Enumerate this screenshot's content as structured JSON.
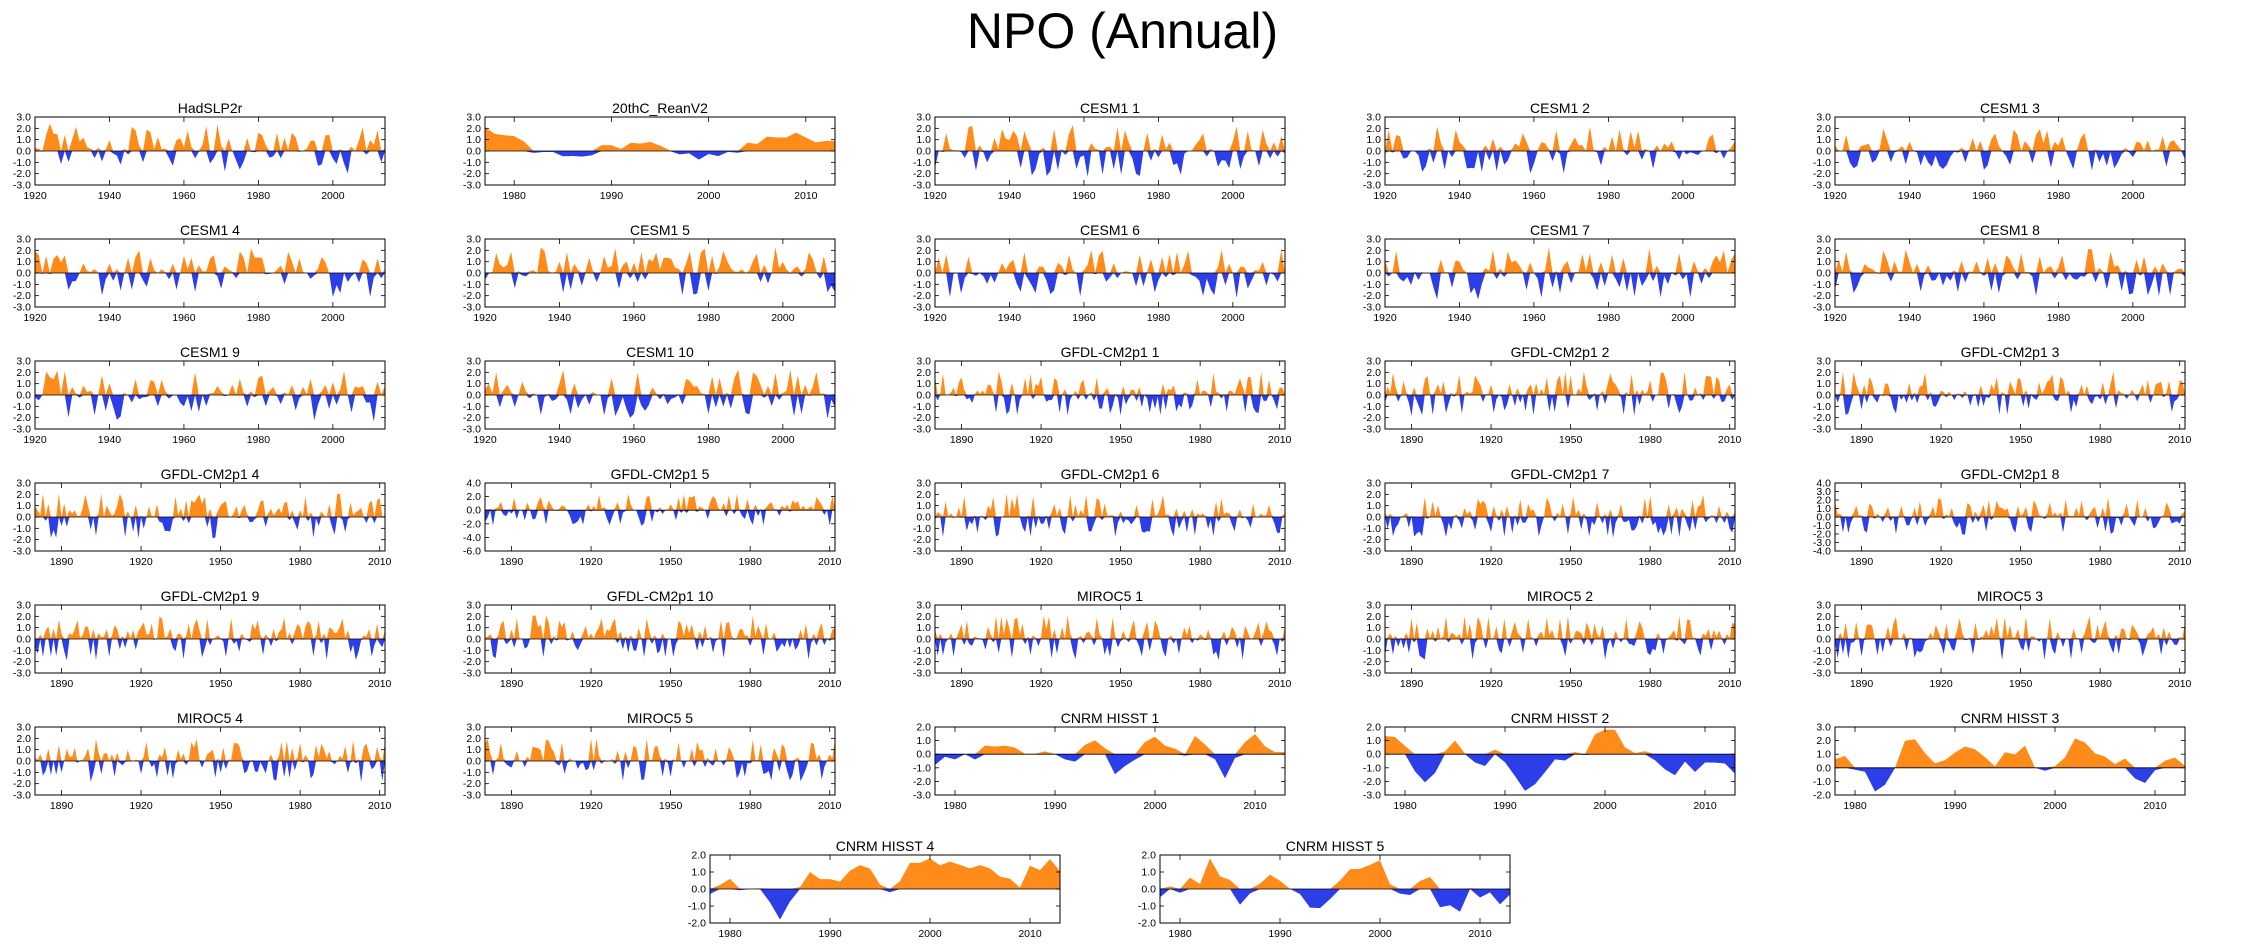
{
  "title": "NPO (Annual)",
  "colors": {
    "positive": "#ff8c1a",
    "negative": "#2b3ee8",
    "frame": "#000000",
    "zero_line": "#000000"
  },
  "chart_data": [
    {
      "type": "area",
      "title": "HadSLP2r",
      "x_ticks": [
        1920,
        1940,
        1960,
        1980,
        2000
      ],
      "xlim": [
        1920,
        2014
      ],
      "y_ticks": [
        3.0,
        2.0,
        1.0,
        0.0,
        -1.0,
        -2.0,
        -3.0
      ],
      "ylim": [
        -3,
        3
      ],
      "seed": 11,
      "smooth": 1,
      "pos_bias": 0.2,
      "amplitude": 1.0
    },
    {
      "type": "area",
      "title": "20thC_ReanV2",
      "x_ticks": [
        1980,
        1990,
        2000,
        2010
      ],
      "xlim": [
        1977,
        2013
      ],
      "y_ticks": [
        3.0,
        2.0,
        1.0,
        0.0,
        -1.0,
        -2.0,
        -3.0
      ],
      "ylim": [
        -3,
        3
      ],
      "seed": 12,
      "smooth": 4,
      "pos_bias": 0.1,
      "amplitude": 1.2
    },
    {
      "type": "area",
      "title": "CESM1 1",
      "x_ticks": [
        1920,
        1940,
        1960,
        1980,
        2000
      ],
      "xlim": [
        1920,
        2014
      ],
      "y_ticks": [
        3.0,
        2.0,
        1.0,
        0.0,
        -1.0,
        -2.0,
        -3.0
      ],
      "ylim": [
        -3,
        3
      ],
      "seed": 13,
      "smooth": 1,
      "pos_bias": 0.1,
      "amplitude": 1.1
    },
    {
      "type": "area",
      "title": "CESM1 2",
      "x_ticks": [
        1920,
        1940,
        1960,
        1980,
        2000
      ],
      "xlim": [
        1920,
        2014
      ],
      "y_ticks": [
        3.0,
        2.0,
        1.0,
        0.0,
        -1.0,
        -2.0,
        -3.0
      ],
      "ylim": [
        -3,
        3
      ],
      "seed": 14,
      "smooth": 1,
      "pos_bias": 0.0,
      "amplitude": 1.0
    },
    {
      "type": "area",
      "title": "CESM1 3",
      "x_ticks": [
        1920,
        1940,
        1960,
        1980,
        2000
      ],
      "xlim": [
        1920,
        2014
      ],
      "y_ticks": [
        3.0,
        2.0,
        1.0,
        0.0,
        -1.0,
        -2.0,
        -3.0
      ],
      "ylim": [
        -3,
        3
      ],
      "seed": 15,
      "smooth": 1,
      "pos_bias": 0.1,
      "amplitude": 0.9
    },
    {
      "type": "area",
      "title": "CESM1 4",
      "x_ticks": [
        1920,
        1940,
        1960,
        1980,
        2000
      ],
      "xlim": [
        1920,
        2014
      ],
      "y_ticks": [
        3.0,
        2.0,
        1.0,
        0.0,
        -1.0,
        -2.0,
        -3.0
      ],
      "ylim": [
        -3,
        3
      ],
      "seed": 16,
      "smooth": 1,
      "pos_bias": 0.0,
      "amplitude": 1.0
    },
    {
      "type": "area",
      "title": "CESM1 5",
      "x_ticks": [
        1920,
        1940,
        1960,
        1980,
        2000
      ],
      "xlim": [
        1920,
        2014
      ],
      "y_ticks": [
        3.0,
        2.0,
        1.0,
        0.0,
        -1.0,
        -2.0,
        -3.0
      ],
      "ylim": [
        -3,
        3
      ],
      "seed": 17,
      "smooth": 1,
      "pos_bias": 0.15,
      "amplitude": 1.0
    },
    {
      "type": "area",
      "title": "CESM1 6",
      "x_ticks": [
        1920,
        1940,
        1960,
        1980,
        2000
      ],
      "xlim": [
        1920,
        2014
      ],
      "y_ticks": [
        3.0,
        2.0,
        1.0,
        0.0,
        -1.0,
        -2.0,
        -3.0
      ],
      "ylim": [
        -3,
        3
      ],
      "seed": 18,
      "smooth": 1,
      "pos_bias": 0.0,
      "amplitude": 1.0
    },
    {
      "type": "area",
      "title": "CESM1 7",
      "x_ticks": [
        1920,
        1940,
        1960,
        1980,
        2000
      ],
      "xlim": [
        1920,
        2014
      ],
      "y_ticks": [
        3.0,
        2.0,
        1.0,
        0.0,
        -1.0,
        -2.0,
        -3.0
      ],
      "ylim": [
        -3,
        3
      ],
      "seed": 19,
      "smooth": 1,
      "pos_bias": 0.05,
      "amplitude": 1.1
    },
    {
      "type": "area",
      "title": "CESM1 8",
      "x_ticks": [
        1920,
        1940,
        1960,
        1980,
        2000
      ],
      "xlim": [
        1920,
        2014
      ],
      "y_ticks": [
        3.0,
        2.0,
        1.0,
        0.0,
        -1.0,
        -2.0,
        -3.0
      ],
      "ylim": [
        -3,
        3
      ],
      "seed": 20,
      "smooth": 1,
      "pos_bias": 0.1,
      "amplitude": 1.0
    },
    {
      "type": "area",
      "title": "CESM1 9",
      "x_ticks": [
        1920,
        1940,
        1960,
        1980,
        2000
      ],
      "xlim": [
        1920,
        2014
      ],
      "y_ticks": [
        3.0,
        2.0,
        1.0,
        0.0,
        -1.0,
        -2.0,
        -3.0
      ],
      "ylim": [
        -3,
        3
      ],
      "seed": 21,
      "smooth": 1,
      "pos_bias": 0.05,
      "amplitude": 1.1
    },
    {
      "type": "area",
      "title": "CESM1 10",
      "x_ticks": [
        1920,
        1940,
        1960,
        1980,
        2000
      ],
      "xlim": [
        1920,
        2014
      ],
      "y_ticks": [
        3.0,
        2.0,
        1.0,
        0.0,
        -1.0,
        -2.0,
        -3.0
      ],
      "ylim": [
        -3,
        3
      ],
      "seed": 22,
      "smooth": 1,
      "pos_bias": 0.1,
      "amplitude": 1.0
    },
    {
      "type": "area",
      "title": "GFDL-CM2p1 1",
      "x_ticks": [
        1890,
        1920,
        1950,
        1980,
        2010
      ],
      "xlim": [
        1880,
        2012
      ],
      "y_ticks": [
        3.0,
        2.0,
        1.0,
        0.0,
        -1.0,
        -2.0,
        -3.0
      ],
      "ylim": [
        -3,
        3
      ],
      "seed": 23,
      "smooth": 1,
      "pos_bias": 0.1,
      "amplitude": 0.9
    },
    {
      "type": "area",
      "title": "GFDL-CM2p1 2",
      "x_ticks": [
        1890,
        1920,
        1950,
        1980,
        2010
      ],
      "xlim": [
        1880,
        2012
      ],
      "y_ticks": [
        3.0,
        2.0,
        1.0,
        0.0,
        -1.0,
        -2.0,
        -3.0
      ],
      "ylim": [
        -3,
        3
      ],
      "seed": 24,
      "smooth": 1,
      "pos_bias": 0.1,
      "amplitude": 0.9
    },
    {
      "type": "area",
      "title": "GFDL-CM2p1 3",
      "x_ticks": [
        1890,
        1920,
        1950,
        1980,
        2010
      ],
      "xlim": [
        1880,
        2012
      ],
      "y_ticks": [
        3.0,
        2.0,
        1.0,
        0.0,
        -1.0,
        -2.0,
        -3.0
      ],
      "ylim": [
        -3,
        3
      ],
      "seed": 25,
      "smooth": 1,
      "pos_bias": 0.1,
      "amplitude": 0.9
    },
    {
      "type": "area",
      "title": "GFDL-CM2p1 4",
      "x_ticks": [
        1890,
        1920,
        1950,
        1980,
        2010
      ],
      "xlim": [
        1880,
        2012
      ],
      "y_ticks": [
        3.0,
        2.0,
        1.0,
        0.0,
        -1.0,
        -2.0,
        -3.0
      ],
      "ylim": [
        -3,
        3
      ],
      "seed": 26,
      "smooth": 1,
      "pos_bias": 0.1,
      "amplitude": 0.9
    },
    {
      "type": "area",
      "title": "GFDL-CM2p1 5",
      "x_ticks": [
        1890,
        1920,
        1950,
        1980,
        2010
      ],
      "xlim": [
        1880,
        2012
      ],
      "y_ticks": [
        4.0,
        2.0,
        0.0,
        -2.0,
        -4.0,
        -6.0
      ],
      "ylim": [
        -6,
        4
      ],
      "seed": 27,
      "smooth": 1,
      "pos_bias": 0.1,
      "amplitude": 1.1
    },
    {
      "type": "area",
      "title": "GFDL-CM2p1 6",
      "x_ticks": [
        1890,
        1920,
        1950,
        1980,
        2010
      ],
      "xlim": [
        1880,
        2012
      ],
      "y_ticks": [
        3.0,
        2.0,
        1.0,
        0.0,
        -1.0,
        -2.0,
        -3.0
      ],
      "ylim": [
        -3,
        3
      ],
      "seed": 28,
      "smooth": 1,
      "pos_bias": 0.1,
      "amplitude": 0.9
    },
    {
      "type": "area",
      "title": "GFDL-CM2p1 7",
      "x_ticks": [
        1890,
        1920,
        1950,
        1980,
        2010
      ],
      "xlim": [
        1880,
        2012
      ],
      "y_ticks": [
        3.0,
        2.0,
        1.0,
        0.0,
        -1.0,
        -2.0,
        -3.0
      ],
      "ylim": [
        -3,
        3
      ],
      "seed": 29,
      "smooth": 1,
      "pos_bias": 0.1,
      "amplitude": 0.9
    },
    {
      "type": "area",
      "title": "GFDL-CM2p1 8",
      "x_ticks": [
        1890,
        1920,
        1950,
        1980,
        2010
      ],
      "xlim": [
        1880,
        2012
      ],
      "y_ticks": [
        4.0,
        3.0,
        2.0,
        1.0,
        0.0,
        -1.0,
        -2.0,
        -3.0,
        -4.0
      ],
      "ylim": [
        -4,
        4
      ],
      "seed": 30,
      "smooth": 1,
      "pos_bias": 0.1,
      "amplitude": 1.0
    },
    {
      "type": "area",
      "title": "GFDL-CM2p1 9",
      "x_ticks": [
        1890,
        1920,
        1950,
        1980,
        2010
      ],
      "xlim": [
        1880,
        2012
      ],
      "y_ticks": [
        3.0,
        2.0,
        1.0,
        0.0,
        -1.0,
        -2.0,
        -3.0
      ],
      "ylim": [
        -3,
        3
      ],
      "seed": 31,
      "smooth": 1,
      "pos_bias": 0.1,
      "amplitude": 0.9
    },
    {
      "type": "area",
      "title": "GFDL-CM2p1 10",
      "x_ticks": [
        1890,
        1920,
        1950,
        1980,
        2010
      ],
      "xlim": [
        1880,
        2012
      ],
      "y_ticks": [
        3.0,
        2.0,
        1.0,
        0.0,
        -1.0,
        -2.0,
        -3.0
      ],
      "ylim": [
        -3,
        3
      ],
      "seed": 32,
      "smooth": 1,
      "pos_bias": 0.1,
      "amplitude": 0.9
    },
    {
      "type": "area",
      "title": "MIROC5 1",
      "x_ticks": [
        1890,
        1920,
        1950,
        1980,
        2010
      ],
      "xlim": [
        1880,
        2012
      ],
      "y_ticks": [
        3.0,
        2.0,
        1.0,
        0.0,
        -1.0,
        -2.0,
        -3.0
      ],
      "ylim": [
        -3,
        3
      ],
      "seed": 33,
      "smooth": 1,
      "pos_bias": 0.1,
      "amplitude": 0.9
    },
    {
      "type": "area",
      "title": "MIROC5 2",
      "x_ticks": [
        1890,
        1920,
        1950,
        1980,
        2010
      ],
      "xlim": [
        1880,
        2012
      ],
      "y_ticks": [
        3.0,
        2.0,
        1.0,
        0.0,
        -1.0,
        -2.0,
        -3.0
      ],
      "ylim": [
        -3,
        3
      ],
      "seed": 34,
      "smooth": 1,
      "pos_bias": 0.1,
      "amplitude": 0.9
    },
    {
      "type": "area",
      "title": "MIROC5 3",
      "x_ticks": [
        1890,
        1920,
        1950,
        1980,
        2010
      ],
      "xlim": [
        1880,
        2012
      ],
      "y_ticks": [
        3.0,
        2.0,
        1.0,
        0.0,
        -1.0,
        -2.0,
        -3.0
      ],
      "ylim": [
        -3,
        3
      ],
      "seed": 35,
      "smooth": 1,
      "pos_bias": 0.1,
      "amplitude": 0.9
    },
    {
      "type": "area",
      "title": "MIROC5 4",
      "x_ticks": [
        1890,
        1920,
        1950,
        1980,
        2010
      ],
      "xlim": [
        1880,
        2012
      ],
      "y_ticks": [
        3.0,
        2.0,
        1.0,
        0.0,
        -1.0,
        -2.0,
        -3.0
      ],
      "ylim": [
        -3,
        3
      ],
      "seed": 36,
      "smooth": 1,
      "pos_bias": 0.1,
      "amplitude": 0.9
    },
    {
      "type": "area",
      "title": "MIROC5 5",
      "x_ticks": [
        1890,
        1920,
        1950,
        1980,
        2010
      ],
      "xlim": [
        1880,
        2012
      ],
      "y_ticks": [
        3.0,
        2.0,
        1.0,
        0.0,
        -1.0,
        -2.0,
        -3.0
      ],
      "ylim": [
        -3,
        3
      ],
      "seed": 37,
      "smooth": 1,
      "pos_bias": 0.1,
      "amplitude": 0.9
    },
    {
      "type": "area",
      "title": "CNRM HISST 1",
      "x_ticks": [
        1980,
        1990,
        2000,
        2010
      ],
      "xlim": [
        1978,
        2013
      ],
      "y_ticks": [
        2.0,
        1.0,
        0.0,
        -1.0,
        -2.0,
        -3.0
      ],
      "ylim": [
        -3,
        2
      ],
      "seed": 38,
      "smooth": 2,
      "pos_bias": 0.0,
      "amplitude": 1.0
    },
    {
      "type": "area",
      "title": "CNRM HISST 2",
      "x_ticks": [
        1980,
        1990,
        2000,
        2010
      ],
      "xlim": [
        1978,
        2013
      ],
      "y_ticks": [
        2.0,
        1.0,
        0.0,
        -1.0,
        -2.0,
        -3.0
      ],
      "ylim": [
        -3,
        2
      ],
      "seed": 39,
      "smooth": 2,
      "pos_bias": 0.0,
      "amplitude": 1.0
    },
    {
      "type": "area",
      "title": "CNRM HISST 3",
      "x_ticks": [
        1980,
        1990,
        2000,
        2010
      ],
      "xlim": [
        1978,
        2013
      ],
      "y_ticks": [
        3.0,
        2.0,
        1.0,
        0.0,
        -1.0,
        -2.0
      ],
      "ylim": [
        -2,
        3
      ],
      "seed": 40,
      "smooth": 2,
      "pos_bias": 0.1,
      "amplitude": 1.0
    },
    {
      "type": "area",
      "title": "CNRM HISST 4",
      "x_ticks": [
        1980,
        1990,
        2000,
        2010
      ],
      "xlim": [
        1978,
        2013
      ],
      "y_ticks": [
        2.0,
        1.0,
        0.0,
        -1.0,
        -2.0
      ],
      "ylim": [
        -2,
        2
      ],
      "seed": 41,
      "smooth": 2,
      "pos_bias": 0.0,
      "amplitude": 1.0
    },
    {
      "type": "area",
      "title": "CNRM HISST 5",
      "x_ticks": [
        1980,
        1990,
        2000,
        2010
      ],
      "xlim": [
        1978,
        2013
      ],
      "y_ticks": [
        2.0,
        1.0,
        0.0,
        -1.0,
        -2.0
      ],
      "ylim": [
        -2,
        2
      ],
      "seed": 42,
      "smooth": 2,
      "pos_bias": 0.0,
      "amplitude": 1.0
    }
  ]
}
